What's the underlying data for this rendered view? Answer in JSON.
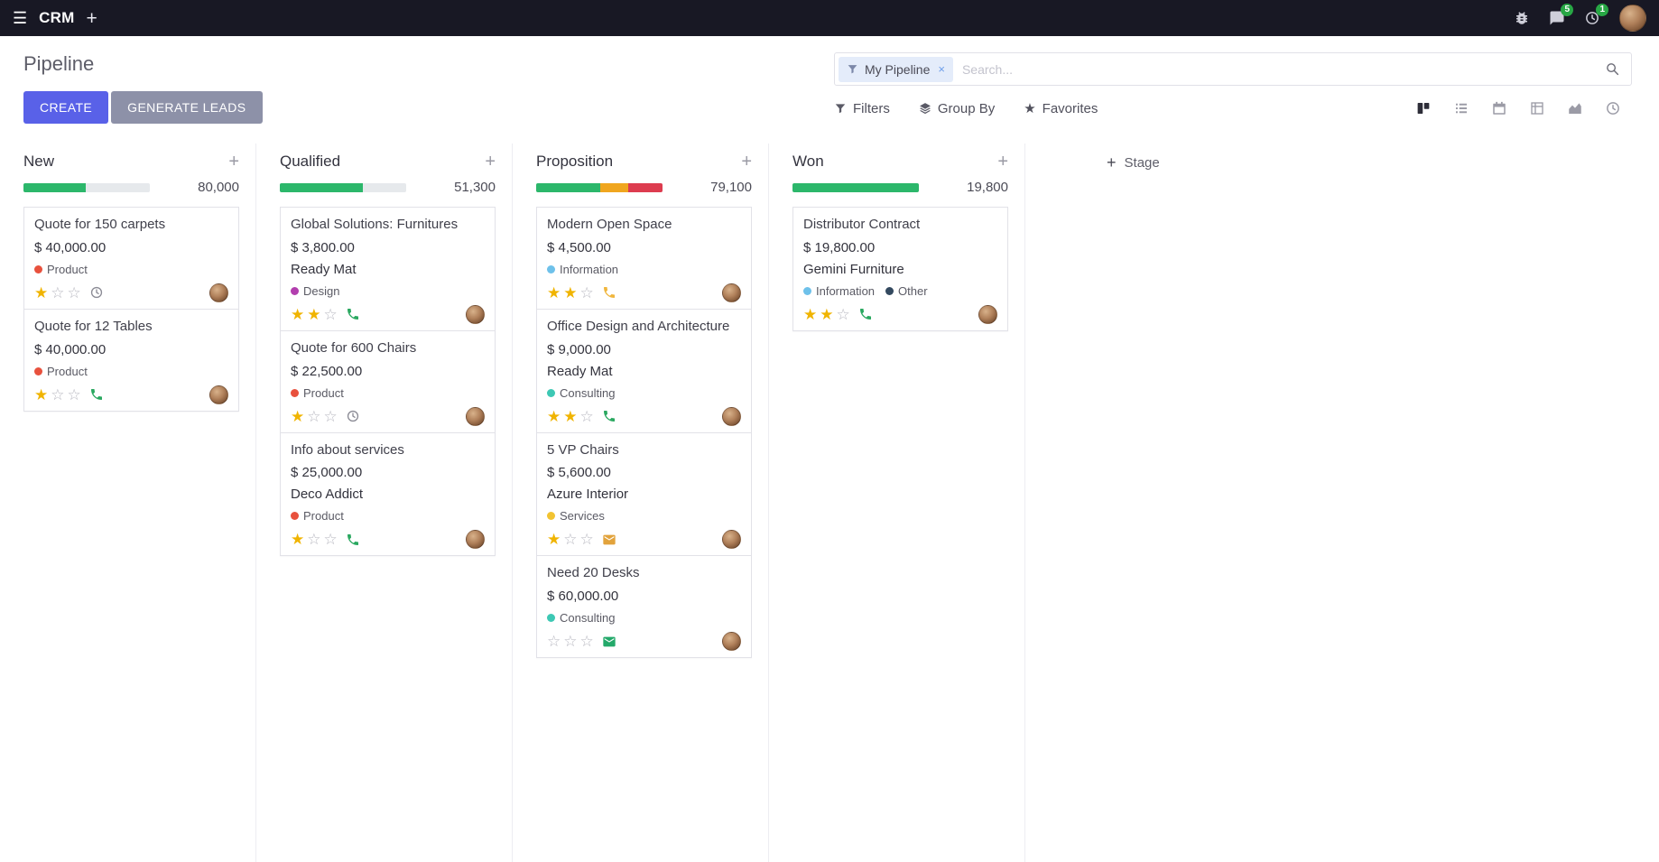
{
  "colors": {
    "navbar_bg": "#181824",
    "accent": "#5961e8",
    "secondary_button": "#8d91a8",
    "badge_green": "#28a745",
    "star_gold": "#f0b400",
    "progress_green": "#2cb76b",
    "progress_yellow": "#f0a61f",
    "progress_red": "#dd3c4f"
  },
  "icons": {
    "menu_glyph": "☰",
    "plus_glyph": "+",
    "star_glyph": "★",
    "star_filled_glyph": "★",
    "star_empty_glyph": "☆",
    "navbar_systray": [
      "bug-icon",
      "messages-icon",
      "activities-icon"
    ],
    "search": "search-icon",
    "filters": "filter-icon",
    "group_by": "layers-icon",
    "favorites": "star-icon",
    "view_switcher": [
      "kanban",
      "list",
      "calendar",
      "pivot",
      "graph",
      "activity"
    ]
  },
  "navbar": {
    "app_name": "CRM",
    "plus_icon": "+",
    "messages_badge": "5",
    "activities_badge": "1"
  },
  "control_panel": {
    "title": "Pipeline",
    "create_label": "CREATE",
    "generate_leads_label": "GENERATE LEADS",
    "search": {
      "facet_label": "My Pipeline",
      "facet_remove": "×",
      "placeholder": "Search...",
      "value": ""
    },
    "filters_label": "Filters",
    "group_by_label": "Group By",
    "favorites_label": "Favorites"
  },
  "board": {
    "add_icon": "+",
    "add_stage_label": "Stage",
    "columns": [
      {
        "name": "New",
        "total": "80,000",
        "progress": [
          {
            "color": "#2cb76b",
            "pct": 49
          }
        ],
        "cards": [
          {
            "title": "Quote for 150 carpets",
            "amount": "$ 40,000.00",
            "tags": [
              {
                "label": "Product",
                "color": "#e8513d"
              }
            ],
            "stars": 1,
            "stars_total": 3,
            "activity": {
              "type": "clock",
              "color": "#8b8b95"
            }
          },
          {
            "title": "Quote for 12 Tables",
            "amount": "$ 40,000.00",
            "tags": [
              {
                "label": "Product",
                "color": "#e8513d"
              }
            ],
            "stars": 1,
            "stars_total": 3,
            "activity": {
              "type": "phone",
              "color": "#2aa860"
            }
          }
        ]
      },
      {
        "name": "Qualified",
        "total": "51,300",
        "progress": [
          {
            "color": "#2cb76b",
            "pct": 66
          }
        ],
        "cards": [
          {
            "title": "Global Solutions: Furnitures",
            "amount": "$ 3,800.00",
            "company": "Ready Mat",
            "tags": [
              {
                "label": "Design",
                "color": "#b23eae"
              }
            ],
            "stars": 2,
            "stars_total": 3,
            "activity": {
              "type": "phone",
              "color": "#2aa860"
            }
          },
          {
            "title": "Quote for 600 Chairs",
            "amount": "$ 22,500.00",
            "tags": [
              {
                "label": "Product",
                "color": "#e8513d"
              }
            ],
            "stars": 1,
            "stars_total": 3,
            "activity": {
              "type": "clock",
              "color": "#8b8b95"
            }
          },
          {
            "title": "Info about services",
            "amount": "$ 25,000.00",
            "company": "Deco Addict",
            "tags": [
              {
                "label": "Product",
                "color": "#e8513d"
              }
            ],
            "stars": 1,
            "stars_total": 3,
            "activity": {
              "type": "phone",
              "color": "#2aa860"
            }
          }
        ]
      },
      {
        "name": "Proposition",
        "total": "79,100",
        "progress": [
          {
            "color": "#2cb76b",
            "pct": 51
          },
          {
            "color": "#f0a61f",
            "pct": 22
          },
          {
            "color": "#dd3c4f",
            "pct": 27
          }
        ],
        "cards": [
          {
            "title": "Modern Open Space",
            "amount": "$ 4,500.00",
            "tags": [
              {
                "label": "Information",
                "color": "#6ec1ea"
              }
            ],
            "stars": 2,
            "stars_total": 3,
            "activity": {
              "type": "phone",
              "color": "#f0b63d"
            }
          },
          {
            "title": "Office Design and Architecture",
            "amount": "$ 9,000.00",
            "company": "Ready Mat",
            "tags": [
              {
                "label": "Consulting",
                "color": "#3dc8b4"
              }
            ],
            "stars": 2,
            "stars_total": 3,
            "activity": {
              "type": "phone",
              "color": "#2aa860"
            }
          },
          {
            "title": "5 VP Chairs",
            "amount": "$ 5,600.00",
            "company": "Azure Interior",
            "tags": [
              {
                "label": "Services",
                "color": "#f2c331"
              }
            ],
            "stars": 1,
            "stars_total": 3,
            "activity": {
              "type": "envelope",
              "color": "#e2a33c"
            }
          },
          {
            "title": "Need 20 Desks",
            "amount": "$ 60,000.00",
            "tags": [
              {
                "label": "Consulting",
                "color": "#3dc8b4"
              }
            ],
            "stars": 0,
            "stars_total": 3,
            "activity": {
              "type": "envelope",
              "color": "#23a96a"
            }
          }
        ]
      },
      {
        "name": "Won",
        "total": "19,800",
        "progress": [
          {
            "color": "#2cb76b",
            "pct": 100
          }
        ],
        "cards": [
          {
            "title": "Distributor Contract",
            "amount": "$ 19,800.00",
            "company": "Gemini Furniture",
            "tags": [
              {
                "label": "Information",
                "color": "#6ec1ea"
              },
              {
                "label": "Other",
                "color": "#33495f"
              }
            ],
            "stars": 2,
            "stars_total": 3,
            "activity": {
              "type": "phone",
              "color": "#2aa860"
            }
          }
        ]
      }
    ]
  }
}
